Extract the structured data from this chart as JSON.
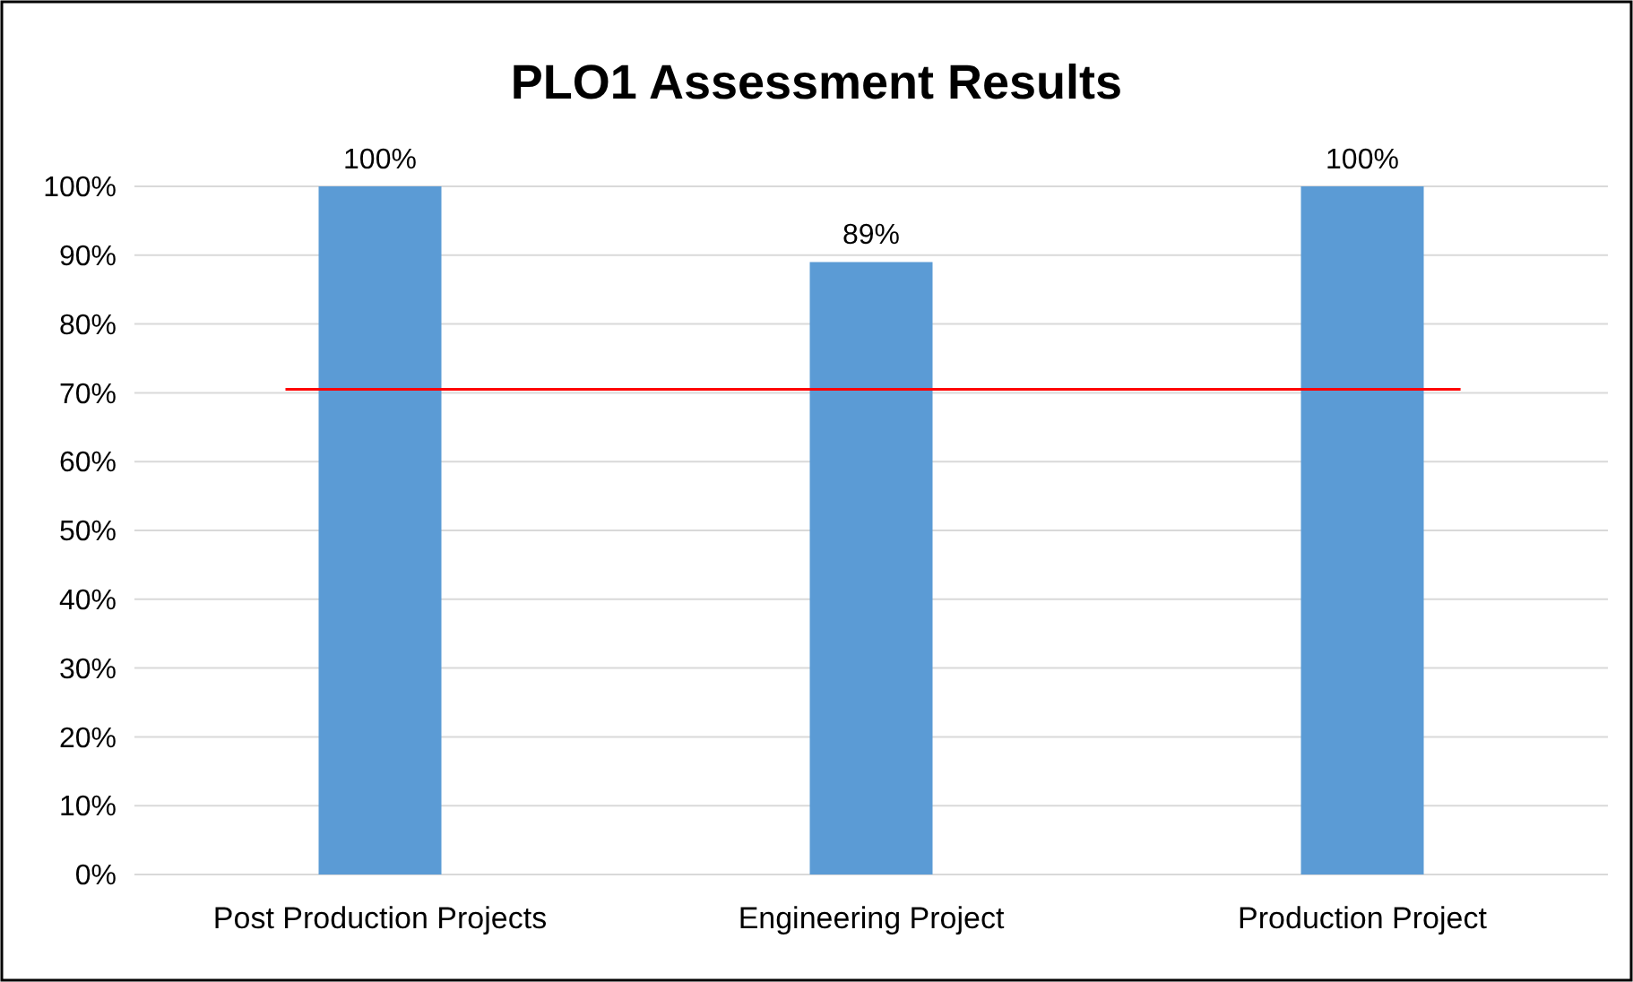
{
  "chart_data": {
    "type": "bar",
    "title": "PLO1 Assessment Results",
    "categories": [
      "Post Production Projects",
      "Engineering Project",
      "Production Project"
    ],
    "values": [
      100,
      89,
      100
    ],
    "color": "#5b9bd5",
    "value_labels": [
      "100%",
      "89%",
      "100%"
    ],
    "ylim": [
      0,
      100
    ],
    "yticks": [
      {
        "value": 0,
        "label": "0%"
      },
      {
        "value": 10,
        "label": "10%"
      },
      {
        "value": 20,
        "label": "20%"
      },
      {
        "value": 30,
        "label": "30%"
      },
      {
        "value": 40,
        "label": "40%"
      },
      {
        "value": 50,
        "label": "50%"
      },
      {
        "value": 60,
        "label": "60%"
      },
      {
        "value": 70,
        "label": "70%"
      },
      {
        "value": 80,
        "label": "80%"
      },
      {
        "value": 90,
        "label": "90%"
      },
      {
        "value": 100,
        "label": "100%"
      }
    ],
    "grid": "y",
    "ref_lines": [
      {
        "axis": "y",
        "value": 70.5,
        "label": null,
        "color": "#ff0000"
      }
    ]
  }
}
